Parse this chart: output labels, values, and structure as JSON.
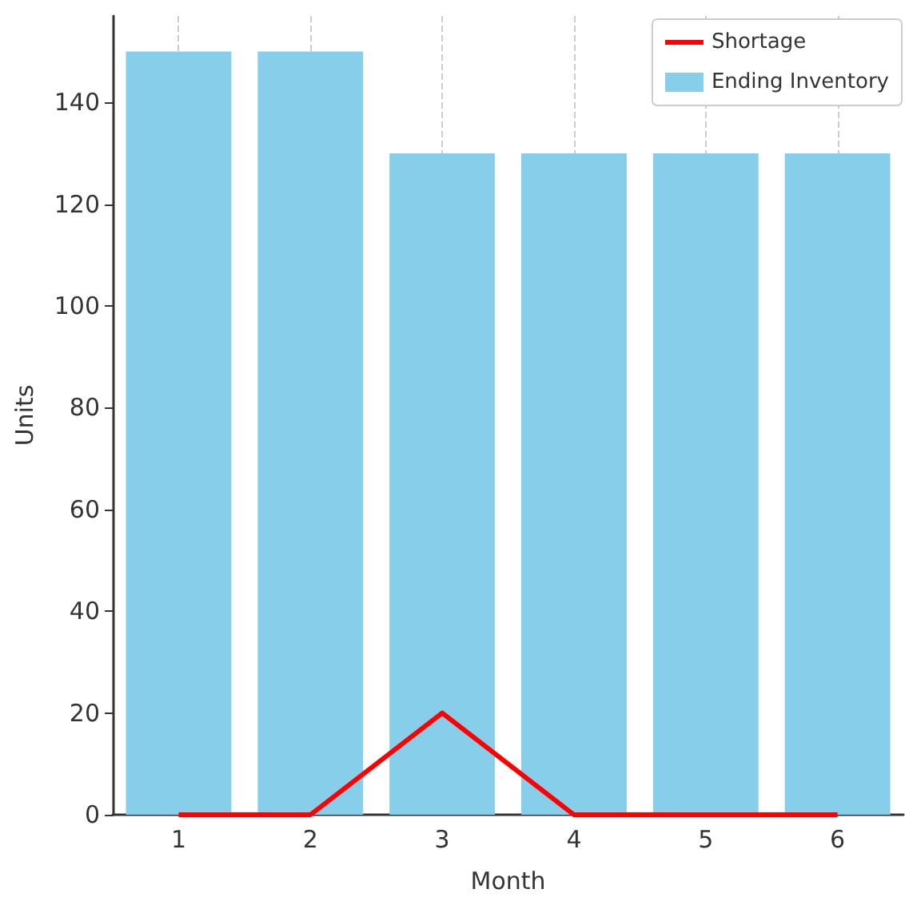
{
  "chart_data": {
    "type": "bar",
    "xlabel": "Month",
    "ylabel": "Units",
    "categories": [
      "1",
      "2",
      "3",
      "4",
      "5",
      "6"
    ],
    "series": [
      {
        "name": "Ending Inventory",
        "color": "#87ceeb",
        "values": [
          150,
          150,
          130,
          130,
          130,
          130
        ]
      },
      {
        "name": "Shortage",
        "type": "line",
        "color": "#ff0000",
        "values": [
          0,
          0,
          20,
          0,
          0,
          0
        ]
      }
    ],
    "ylim": [
      0,
      157
    ],
    "yticks": [
      0,
      20,
      40,
      60,
      80,
      100,
      120,
      140
    ],
    "grid": "x",
    "legend": "top right",
    "marker": "none",
    "line_style": "solid"
  }
}
